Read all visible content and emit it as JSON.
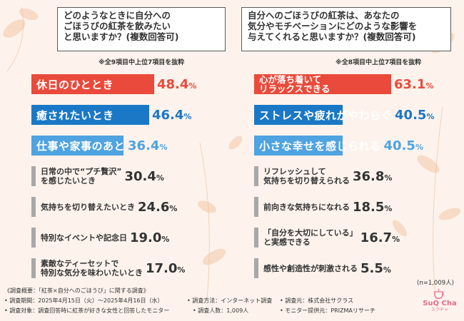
{
  "colors": {
    "red": "#ea4a3b",
    "blue": "#1a78c6",
    "lightblue": "#4ea3e0",
    "gray": "#a8a8a8",
    "lightgray": "#c9c9c9"
  },
  "left": {
    "question": [
      "どのようなときに自分への",
      "ごほうびの紅茶を飲みたい",
      "と思いますか？(複数回答可)"
    ],
    "note": "※全9項目中上位7項目を抜粋"
  },
  "right": {
    "question": [
      "自分へのごほうびの紅茶は、あなたの",
      "気分やモチベーションにどのような影響を",
      "与えてくれると思いますか？(複数回答可)"
    ],
    "note": "※全8項目中上位7項目を抜粋",
    "n_label": "(n=1,009人)"
  },
  "chart_data": [
    {
      "type": "bar",
      "title": "どのようなときに自分へのごほうびの紅茶を飲みたいと思いますか？(複数回答可)",
      "unit": "%",
      "categories": [
        [
          "休日のひととき"
        ],
        [
          "癒されたいとき"
        ],
        [
          "仕事や家事のあと"
        ],
        [
          "日常の中で“プチ贅沢”",
          "を感じたいとき"
        ],
        [
          "気持ちを切り替えたいとき"
        ],
        [
          "特別なイベントや記念日"
        ],
        [
          "素敵なティーセットで",
          "特別な気分を味わいたいとき"
        ]
      ],
      "values": [
        48.4,
        46.4,
        36.4,
        30.4,
        24.6,
        19.0,
        17.0
      ],
      "value_labels": [
        "48.4",
        "46.4",
        "36.4",
        "30.4",
        "24.6",
        "19.0",
        "17.0"
      ]
    },
    {
      "type": "bar",
      "title": "自分へのごほうびの紅茶は、あなたの気分やモチベーションにどのような影響を与えてくれると思いますか？(複数回答可)",
      "unit": "%",
      "categories": [
        [
          "心が落ち着いて",
          "リラックスできる"
        ],
        [
          "ストレスや疲れがやわらぐ"
        ],
        [
          "小さな幸せを感じられる"
        ],
        [
          "リフレッシュして",
          "気持ちを切り替えられる"
        ],
        [
          "前向きな気持ちになれる"
        ],
        [
          "「自分を大切にしている」",
          "と実感できる"
        ],
        [
          "感性や創造性が刺激される"
        ]
      ],
      "values": [
        63.1,
        40.5,
        40.5,
        36.8,
        18.5,
        16.7,
        5.5
      ],
      "value_labels": [
        "63.1",
        "40.5",
        "40.5",
        "36.8",
        "18.5",
        "16.7",
        "5.5"
      ]
    }
  ],
  "footer": {
    "summary": "《調査概要：「紅茶×自分へのごほうび」に関する調査》",
    "period": "• 調査期間：2025年4月15日（火）～2025年4月16日（水）",
    "method": "• 調査方法：インターネット調査",
    "org": "• 調査元：株式会社サクラス",
    "target": "• 調査対象：調査回答時に紅茶が好きな女性と回答したモニター",
    "count": "• 調査人数：1,009人",
    "provider": "• モニター提供元：PRIZMAリサーチ"
  },
  "logo": {
    "text": "SuQ Cha",
    "sub": "スクチャ"
  }
}
